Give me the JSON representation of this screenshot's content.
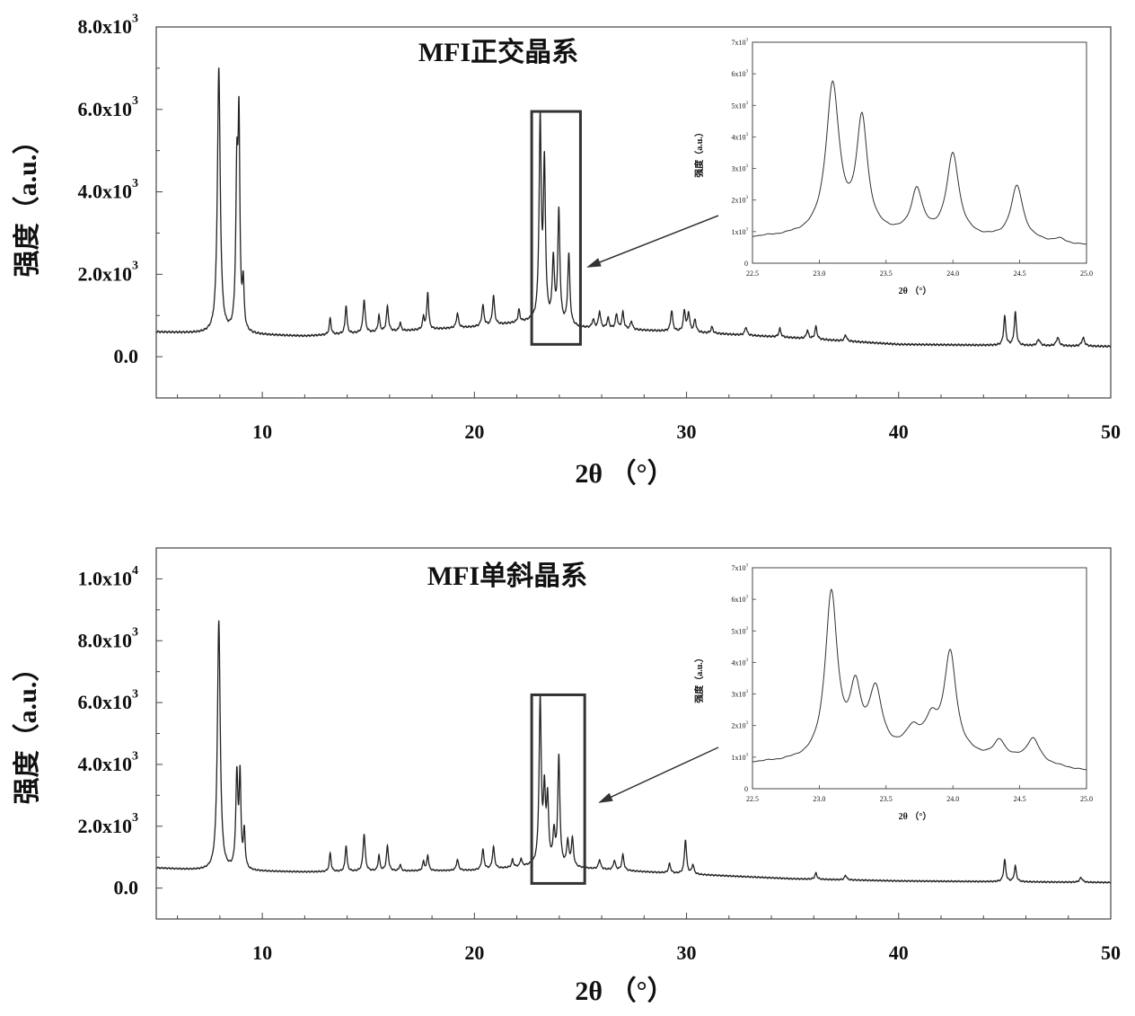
{
  "chart_data": [
    {
      "type": "line",
      "title": "MFI正交晶系",
      "xlabel": "2θ （°）",
      "ylabel": "强度（a.u.）",
      "xlim": [
        5,
        50
      ],
      "ylim": [
        -1000,
        8000
      ],
      "xticks": [
        10,
        20,
        30,
        40,
        50
      ],
      "yticks": [
        {
          "value": 0,
          "mant": "0.0",
          "exp": ""
        },
        {
          "value": 2000,
          "mant": "2.0x10",
          "exp": "3"
        },
        {
          "value": 4000,
          "mant": "4.0x10",
          "exp": "3"
        },
        {
          "value": 6000,
          "mant": "6.0x10",
          "exp": "3"
        },
        {
          "value": 8000,
          "mant": "8.0x10",
          "exp": "3"
        }
      ],
      "baseline": [
        [
          5,
          600
        ],
        [
          7.5,
          560
        ],
        [
          12,
          500
        ],
        [
          20,
          720
        ],
        [
          22.7,
          850
        ],
        [
          25,
          700
        ],
        [
          30,
          600
        ],
        [
          35,
          460
        ],
        [
          40,
          300
        ],
        [
          50,
          250
        ]
      ],
      "peaks": [
        [
          7.95,
          6400,
          0.08
        ],
        [
          8.8,
          3700,
          0.06
        ],
        [
          8.9,
          4700,
          0.05
        ],
        [
          9.1,
          1100,
          0.05
        ],
        [
          13.2,
          400,
          0.05
        ],
        [
          13.95,
          700,
          0.05
        ],
        [
          14.8,
          800,
          0.06
        ],
        [
          15.5,
          400,
          0.05
        ],
        [
          15.9,
          600,
          0.06
        ],
        [
          16.5,
          200,
          0.05
        ],
        [
          17.6,
          300,
          0.05
        ],
        [
          17.8,
          900,
          0.05
        ],
        [
          19.2,
          350,
          0.06
        ],
        [
          20.4,
          500,
          0.06
        ],
        [
          20.9,
          700,
          0.06
        ],
        [
          22.1,
          300,
          0.05
        ],
        [
          23.1,
          4800,
          0.06
        ],
        [
          23.3,
          3700,
          0.06
        ],
        [
          23.72,
          1500,
          0.06
        ],
        [
          23.98,
          2700,
          0.06
        ],
        [
          24.45,
          1700,
          0.06
        ],
        [
          25.6,
          200,
          0.06
        ],
        [
          25.9,
          400,
          0.06
        ],
        [
          26.3,
          250,
          0.06
        ],
        [
          26.7,
          350,
          0.06
        ],
        [
          27.0,
          400,
          0.06
        ],
        [
          27.4,
          200,
          0.06
        ],
        [
          29.3,
          500,
          0.06
        ],
        [
          29.9,
          500,
          0.06
        ],
        [
          30.1,
          450,
          0.06
        ],
        [
          30.4,
          300,
          0.06
        ],
        [
          31.2,
          150,
          0.06
        ],
        [
          32.8,
          200,
          0.06
        ],
        [
          34.4,
          200,
          0.06
        ],
        [
          35.7,
          200,
          0.06
        ],
        [
          36.1,
          300,
          0.06
        ],
        [
          37.5,
          150,
          0.06
        ],
        [
          45.0,
          700,
          0.06
        ],
        [
          45.5,
          800,
          0.06
        ],
        [
          46.6,
          150,
          0.08
        ],
        [
          47.5,
          200,
          0.08
        ],
        [
          48.7,
          200,
          0.08
        ]
      ],
      "zoom_box": {
        "x": [
          22.7,
          25.0
        ],
        "y": [
          300,
          5950
        ]
      },
      "inset": {
        "xlabel": "2θ （°）",
        "ylabel": "强度（a.u.）",
        "xlim": [
          22.5,
          25.0
        ],
        "ylim": [
          0,
          7000
        ],
        "xticks": [
          "22.5",
          "23.0",
          "23.5",
          "24.0",
          "24.5",
          "25.0"
        ],
        "yticks": [
          {
            "value": 0,
            "mant": "0",
            "exp": ""
          },
          {
            "value": 1000,
            "mant": "1x10",
            "exp": "3"
          },
          {
            "value": 2000,
            "mant": "2x10",
            "exp": "3"
          },
          {
            "value": 3000,
            "mant": "3x10",
            "exp": "3"
          },
          {
            "value": 4000,
            "mant": "4x10",
            "exp": "3"
          },
          {
            "value": 5000,
            "mant": "5x10",
            "exp": "3"
          },
          {
            "value": 6000,
            "mant": "6x10",
            "exp": "3"
          },
          {
            "value": 7000,
            "mant": "7x10",
            "exp": "3"
          }
        ],
        "baseline": [
          [
            22.5,
            800
          ],
          [
            23.0,
            860
          ],
          [
            23.5,
            860
          ],
          [
            24.0,
            800
          ],
          [
            24.5,
            700
          ],
          [
            25.0,
            550
          ]
        ],
        "peaks": [
          [
            23.1,
            4700,
            0.06
          ],
          [
            23.32,
            3550,
            0.05
          ],
          [
            23.73,
            1400,
            0.05
          ],
          [
            24.0,
            2600,
            0.055
          ],
          [
            24.48,
            1700,
            0.055
          ],
          [
            24.8,
            120,
            0.05
          ]
        ]
      }
    },
    {
      "type": "line",
      "title": "MFI单斜晶系",
      "xlabel": "2θ （°）",
      "ylabel": "强度（a.u.）",
      "xlim": [
        5,
        50
      ],
      "ylim": [
        -1000,
        11000
      ],
      "xticks": [
        10,
        20,
        30,
        40,
        50
      ],
      "yticks": [
        {
          "value": 0,
          "mant": "0.0",
          "exp": ""
        },
        {
          "value": 2000,
          "mant": "2.0x10",
          "exp": "3"
        },
        {
          "value": 4000,
          "mant": "4.0x10",
          "exp": "3"
        },
        {
          "value": 6000,
          "mant": "6.0x10",
          "exp": "3"
        },
        {
          "value": 8000,
          "mant": "8.0x10",
          "exp": "3"
        },
        {
          "value": 10000,
          "mant": "1.0x10",
          "exp": "4"
        }
      ],
      "baseline": [
        [
          5,
          650
        ],
        [
          7.5,
          560
        ],
        [
          12,
          520
        ],
        [
          20,
          570
        ],
        [
          22.7,
          700
        ],
        [
          25,
          640
        ],
        [
          30,
          450
        ],
        [
          35,
          300
        ],
        [
          40,
          230
        ],
        [
          50,
          180
        ]
      ],
      "peaks": [
        [
          7.95,
          8050,
          0.08
        ],
        [
          8.8,
          3000,
          0.06
        ],
        [
          8.95,
          2900,
          0.05
        ],
        [
          9.15,
          1200,
          0.05
        ],
        [
          13.2,
          600,
          0.05
        ],
        [
          13.95,
          850,
          0.05
        ],
        [
          14.8,
          1200,
          0.06
        ],
        [
          15.5,
          500,
          0.05
        ],
        [
          15.9,
          800,
          0.06
        ],
        [
          16.5,
          200,
          0.05
        ],
        [
          17.6,
          300,
          0.05
        ],
        [
          17.8,
          500,
          0.05
        ],
        [
          19.2,
          350,
          0.06
        ],
        [
          20.4,
          650,
          0.06
        ],
        [
          20.9,
          700,
          0.06
        ],
        [
          21.8,
          250,
          0.05
        ],
        [
          22.2,
          250,
          0.05
        ],
        [
          23.1,
          5300,
          0.06
        ],
        [
          23.3,
          2200,
          0.06
        ],
        [
          23.45,
          2000,
          0.06
        ],
        [
          23.75,
          1000,
          0.06
        ],
        [
          23.98,
          3500,
          0.06
        ],
        [
          24.4,
          800,
          0.06
        ],
        [
          24.62,
          900,
          0.06
        ],
        [
          25.9,
          300,
          0.06
        ],
        [
          26.6,
          300,
          0.06
        ],
        [
          27.0,
          500,
          0.06
        ],
        [
          29.2,
          300,
          0.06
        ],
        [
          29.95,
          1100,
          0.06
        ],
        [
          30.3,
          300,
          0.06
        ],
        [
          36.1,
          200,
          0.06
        ],
        [
          37.5,
          150,
          0.06
        ],
        [
          45.0,
          700,
          0.06
        ],
        [
          45.5,
          500,
          0.06
        ],
        [
          48.6,
          150,
          0.08
        ]
      ],
      "zoom_box": {
        "x": [
          22.7,
          25.2
        ],
        "y": [
          150,
          6250
        ]
      },
      "inset": {
        "xlabel": "2θ （°）",
        "ylabel": "强度（a.u.）",
        "xlim": [
          22.5,
          25.0
        ],
        "ylim": [
          0,
          7000
        ],
        "xticks": [
          "22.5",
          "23.0",
          "23.5",
          "24.0",
          "24.5",
          "25.0"
        ],
        "yticks": [
          {
            "value": 0,
            "mant": "0",
            "exp": ""
          },
          {
            "value": 1000,
            "mant": "1x10",
            "exp": "3"
          },
          {
            "value": 2000,
            "mant": "2x10",
            "exp": "3"
          },
          {
            "value": 3000,
            "mant": "3x10",
            "exp": "3"
          },
          {
            "value": 4000,
            "mant": "4x10",
            "exp": "3"
          },
          {
            "value": 5000,
            "mant": "5x10",
            "exp": "3"
          },
          {
            "value": 6000,
            "mant": "6x10",
            "exp": "3"
          },
          {
            "value": 7000,
            "mant": "7x10",
            "exp": "3"
          }
        ],
        "baseline": [
          [
            22.5,
            800
          ],
          [
            23.0,
            850
          ],
          [
            23.5,
            1000
          ],
          [
            24.0,
            1000
          ],
          [
            24.5,
            850
          ],
          [
            25.0,
            550
          ]
        ],
        "peaks": [
          [
            23.09,
            5200,
            0.055
          ],
          [
            23.27,
            1900,
            0.05
          ],
          [
            23.42,
            1950,
            0.06
          ],
          [
            23.7,
            700,
            0.07
          ],
          [
            23.84,
            900,
            0.06
          ],
          [
            23.98,
            3150,
            0.055
          ],
          [
            24.35,
            550,
            0.05
          ],
          [
            24.6,
            750,
            0.06
          ]
        ]
      }
    }
  ]
}
